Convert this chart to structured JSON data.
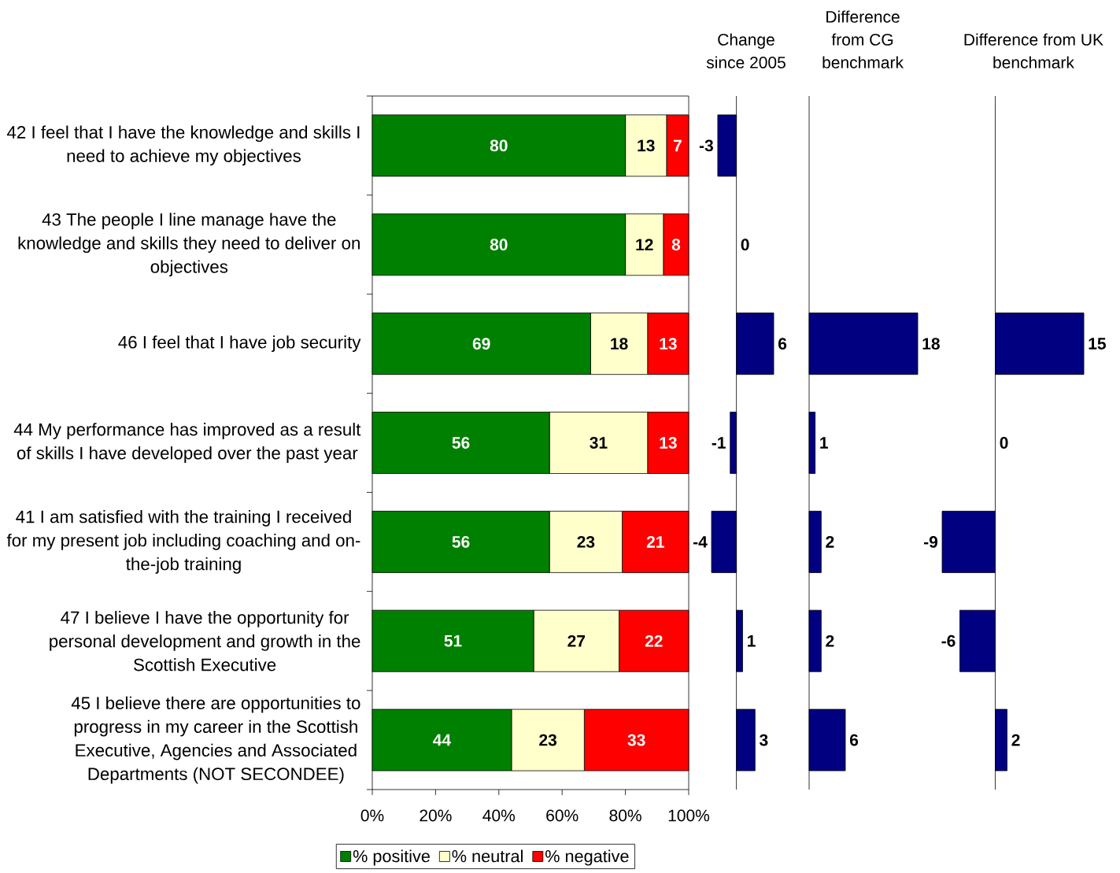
{
  "chart_data": [
    {
      "type": "bar",
      "orientation": "horizontal",
      "stacked": true,
      "categories": [
        "42  I feel that I have the knowledge and skills I need to achieve my objectives",
        "43  The people I line manage have the knowledge and skills they need to deliver on objectives",
        "46  I feel that I have job security",
        "44  My performance has improved as a result of skills I have developed over the past year",
        "41  I am satisfied with the training I received for my present job including coaching and on-the-job training",
        "47  I believe I have the opportunity for personal development and growth in the Scottish Executive",
        "45  I believe there are opportunities to progress in my career in the Scottish Executive, Agencies and Associated Departments (NOT SECONDEE)"
      ],
      "series": [
        {
          "name": "% positive",
          "color": "#008000",
          "values": [
            80,
            80,
            69,
            56,
            56,
            51,
            44
          ]
        },
        {
          "name": "% neutral",
          "color": "#ffffcc",
          "values": [
            13,
            12,
            18,
            31,
            23,
            27,
            23
          ]
        },
        {
          "name": "% negative",
          "color": "#ff0000",
          "values": [
            7,
            8,
            13,
            13,
            21,
            22,
            33
          ]
        }
      ],
      "xlim": [
        0,
        100
      ],
      "xticks": [
        {
          "value": 0,
          "label": "0%"
        },
        {
          "value": 20,
          "label": "20%"
        },
        {
          "value": 40,
          "label": "40%"
        },
        {
          "value": 60,
          "label": "60%"
        },
        {
          "value": 80,
          "label": "80%"
        },
        {
          "value": 100,
          "label": "100%"
        }
      ],
      "data_labels": true,
      "legend": "bottom"
    },
    {
      "type": "bar",
      "orientation": "horizontal",
      "title": "Change since 2005",
      "categories": [
        null,
        null,
        null,
        null,
        null,
        null,
        null
      ],
      "values": [
        -3,
        0,
        6,
        -1,
        -4,
        1,
        3
      ],
      "color": "#000080",
      "data_labels": true,
      "tick_labels": false
    },
    {
      "type": "bar",
      "orientation": "horizontal",
      "title": "Difference from CG benchmark",
      "categories": [
        null,
        null,
        null,
        null,
        null,
        null,
        null
      ],
      "values": [
        null,
        null,
        18,
        1,
        2,
        2,
        6
      ],
      "color": "#000080",
      "data_labels": true,
      "tick_labels": false
    },
    {
      "type": "bar",
      "orientation": "horizontal",
      "title": "Difference from UK benchmark",
      "categories": [
        null,
        null,
        null,
        null,
        null,
        null,
        null
      ],
      "values": [
        null,
        null,
        15,
        0,
        -9,
        -6,
        2
      ],
      "color": "#000080",
      "data_labels": true,
      "tick_labels": false
    }
  ]
}
